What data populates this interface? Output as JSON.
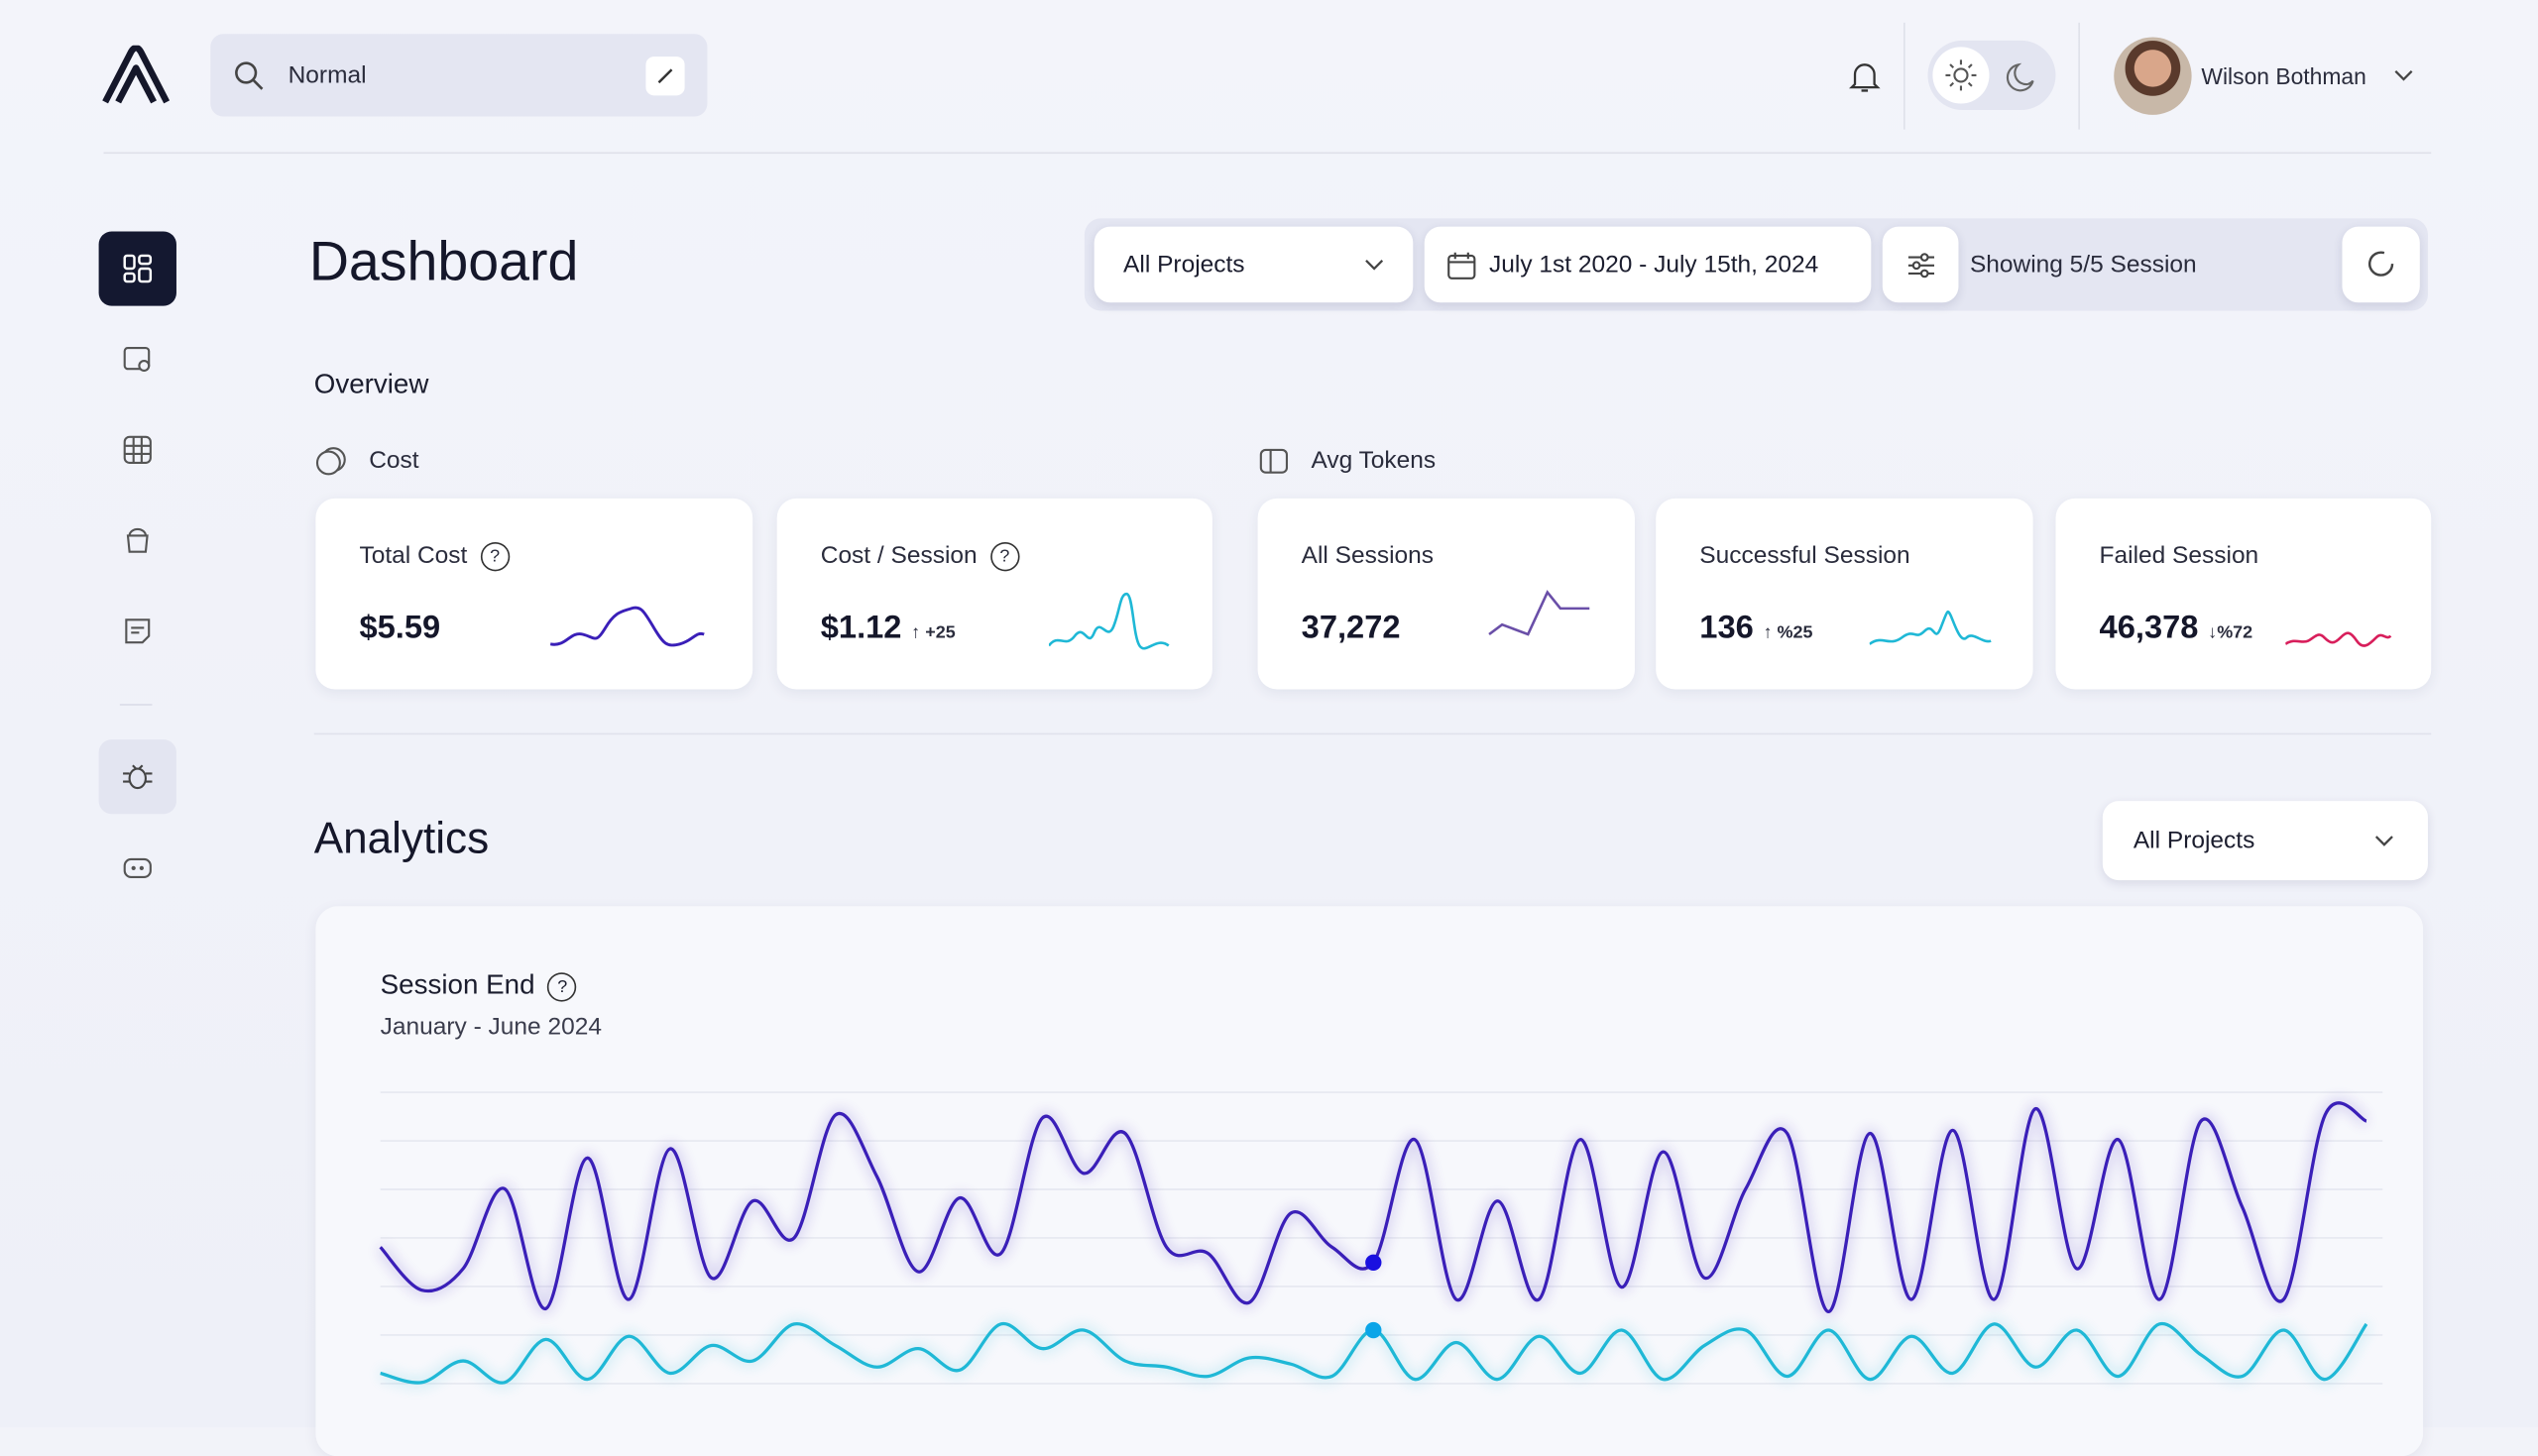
{
  "header": {
    "search": "Normal",
    "user": "Wilson Bothman"
  },
  "toolbar": {
    "title": "Dashboard",
    "project": "All Projects",
    "date_range": "July 1st 2020 - July 15th, 2024",
    "sessions": "Showing 5/5 Session"
  },
  "overview": {
    "title": "Overview",
    "cost_group": "Cost",
    "tokens_group": "Avg Tokens",
    "cards": [
      {
        "label": "Total Cost",
        "value": "$5.59"
      },
      {
        "label": "Cost / Session",
        "value": "$1.12",
        "change": "+25"
      },
      {
        "label": "All Sessions",
        "value": "37,272"
      },
      {
        "label": "Successful Session",
        "value": "136",
        "change": "%25"
      },
      {
        "label": "Failed Session",
        "value": "46,378",
        "change": "%72"
      }
    ]
  },
  "analytics": {
    "title": "Analytics",
    "project": "All Projects",
    "chart_data": {
      "type": "line",
      "title": "Session End",
      "subtitle": "January - June 2024",
      "ylim": [
        0,
        100
      ],
      "grid": true,
      "series": [
        {
          "color": "#3a1fb8",
          "values": [
            47,
            33,
            40,
            66,
            27,
            76,
            30,
            79,
            37,
            62,
            50,
            90,
            70,
            39,
            63,
            45,
            89,
            71,
            84,
            47,
            45,
            29,
            58,
            47,
            42,
            82,
            30,
            62,
            30,
            82,
            34,
            78,
            37,
            66,
            84,
            26,
            84,
            30,
            85,
            30,
            92,
            40,
            82,
            30,
            88,
            60,
            30,
            90,
            88
          ]
        },
        {
          "color": "#1fb8d6",
          "values": [
            6,
            3,
            10,
            3,
            17,
            4,
            18,
            6,
            15,
            10,
            22,
            15,
            8,
            14,
            7,
            22,
            14,
            20,
            10,
            8,
            5,
            11,
            9,
            5,
            20,
            4,
            16,
            4,
            18,
            6,
            20,
            4,
            15,
            20,
            5,
            20,
            4,
            18,
            6,
            22,
            8,
            20,
            5,
            22,
            12,
            5,
            20,
            4,
            22
          ]
        }
      ]
    }
  }
}
